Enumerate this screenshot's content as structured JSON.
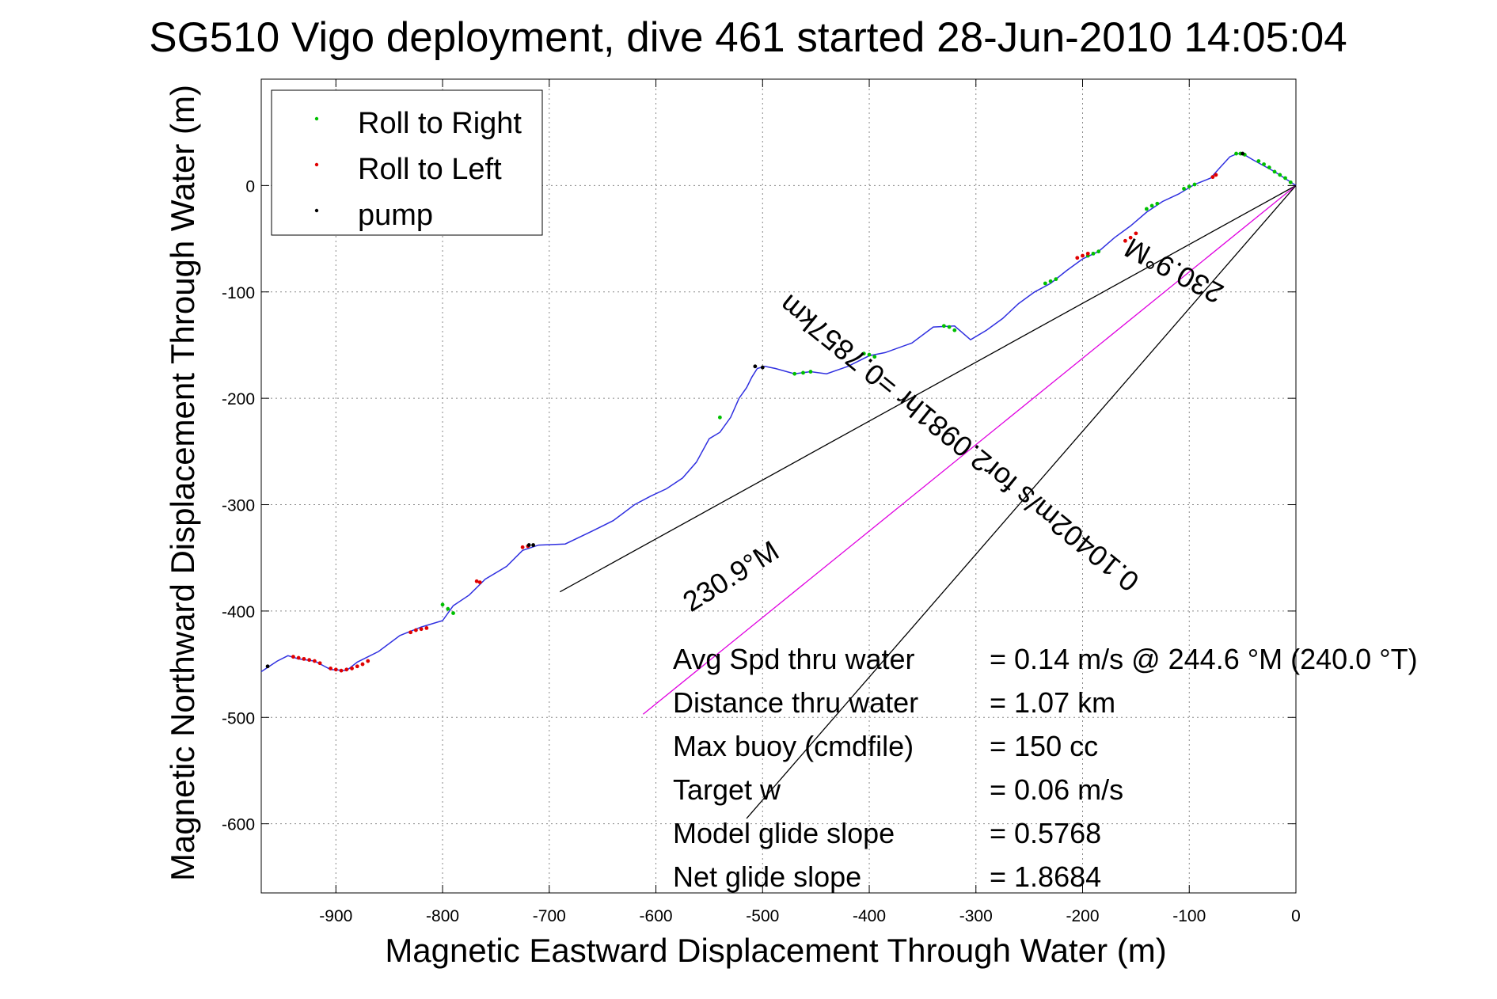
{
  "chart_data": {
    "type": "line",
    "title": "SG510 Vigo deployment, dive 461 started 28-Jun-2010 14:05:04",
    "xlabel": "Magnetic Eastward Displacement Through Water (m)",
    "ylabel": "Magnetic Northward Displacement Through Water (m)",
    "xlim": [
      -970,
      0
    ],
    "ylim": [
      -665,
      100
    ],
    "xticks": [
      -900,
      -800,
      -700,
      -600,
      -500,
      -400,
      -300,
      -200,
      -100,
      0
    ],
    "yticks": [
      0,
      -100,
      -200,
      -300,
      -400,
      -500,
      -600
    ],
    "grid": true,
    "legend_position": "top-left",
    "legend": [
      {
        "label": "Roll to Right",
        "color": "#00c000"
      },
      {
        "label": "Roll to Left",
        "color": "#e00000"
      },
      {
        "label": "pump",
        "color": "#000000"
      }
    ],
    "track": {
      "name": "track",
      "color": "#3030e0",
      "x": [
        0,
        -20,
        -40,
        -50,
        -55,
        -62,
        -72,
        -80,
        -95,
        -110,
        -125,
        -140,
        -155,
        -170,
        -185,
        -200,
        -215,
        -230,
        -245,
        -260,
        -275,
        -290,
        -305,
        -320,
        -340,
        -360,
        -385,
        -400,
        -420,
        -440,
        -455,
        -470,
        -488,
        -498,
        -505,
        -510,
        -515,
        -522,
        -530,
        -540,
        -550,
        -562,
        -575,
        -590,
        -605,
        -620,
        -640,
        -660,
        -685,
        -710,
        -725,
        -740,
        -760,
        -775,
        -790,
        -800,
        -820,
        -840,
        -860,
        -880,
        -890,
        -905,
        -920,
        -935,
        -945,
        -955,
        -970
      ],
      "y": [
        0,
        13,
        24,
        30,
        30,
        27,
        16,
        7,
        1,
        -8,
        -15,
        -25,
        -38,
        -49,
        -62,
        -69,
        -80,
        -92,
        -100,
        -111,
        -125,
        -136,
        -145,
        -132,
        -133,
        -148,
        -157,
        -160,
        -170,
        -177,
        -175,
        -177,
        -172,
        -170,
        -172,
        -180,
        -190,
        -200,
        -218,
        -232,
        -238,
        -260,
        -275,
        -285,
        -292,
        -300,
        -315,
        -325,
        -337,
        -338,
        -343,
        -358,
        -370,
        -385,
        -395,
        -409,
        -415,
        -423,
        -438,
        -448,
        -456,
        -455,
        -447,
        -445,
        -442,
        -447,
        -457
      ]
    },
    "roll_right_points": {
      "x": [
        -5,
        -10,
        -15,
        -20,
        -25,
        -30,
        -35,
        -48,
        -52,
        -56,
        -95,
        -100,
        -105,
        -130,
        -135,
        -140,
        -185,
        -190,
        -195,
        -225,
        -230,
        -235,
        -320,
        -325,
        -330,
        -395,
        -400,
        -405,
        -455,
        -462,
        -470,
        -540,
        -790,
        -795,
        -800
      ],
      "y": [
        3,
        7,
        10,
        13,
        17,
        20,
        23,
        29,
        30,
        30,
        1,
        -1,
        -3,
        -17,
        -19,
        -22,
        -62,
        -64,
        -66,
        -88,
        -90,
        -92,
        -136,
        -133,
        -132,
        -161,
        -159,
        -158,
        -175,
        -176,
        -177,
        -218,
        -402,
        -398,
        -394
      ]
    },
    "roll_left_points": {
      "x": [
        -75,
        -78,
        -150,
        -155,
        -160,
        -195,
        -200,
        -205,
        -720,
        -725,
        -765,
        -768,
        -815,
        -820,
        -825,
        -830,
        -870,
        -875,
        -880,
        -885,
        -890,
        -895,
        -900,
        -905,
        -915,
        -920,
        -925,
        -930,
        -935,
        -940
      ],
      "y": [
        10,
        8,
        -45,
        -49,
        -52,
        -64,
        -66,
        -68,
        -339,
        -340,
        -373,
        -372,
        -416,
        -417,
        -418,
        -420,
        -447,
        -450,
        -452,
        -454,
        -455,
        -456,
        -455,
        -454,
        -449,
        -447,
        -446,
        -445,
        -444,
        -443
      ]
    },
    "pump_points": {
      "x": [
        -50,
        -507,
        -500,
        -719,
        -715,
        -964
      ],
      "y": [
        30,
        -170,
        -171,
        -338,
        -338,
        -452
      ]
    },
    "reference_lines": [
      {
        "x": [
          0,
          -690
        ],
        "y": [
          0,
          -382
        ],
        "color": "#000000"
      },
      {
        "x": [
          0,
          -612
        ],
        "y": [
          0,
          -497
        ],
        "color": "#e000e0"
      },
      {
        "x": [
          0,
          -515
        ],
        "y": [
          0,
          -595
        ],
        "color": "#000000"
      }
    ],
    "annotations": [
      {
        "text": "230.9°M",
        "x": -110,
        "y": -72,
        "rotation": 208
      },
      {
        "text": "0.10402m/s for2.0981hr =0.7857km",
        "x": -310,
        "y": -235,
        "rotation": 219
      },
      {
        "text": "230.9°M",
        "x": -525,
        "y": -375,
        "rotation": -32
      }
    ],
    "stats": [
      {
        "label": "Avg Spd thru water",
        "value": "=  0.14 m/s @ 244.6 °M (240.0 °T)"
      },
      {
        "label": "Distance thru water",
        "value": "=  1.07 km"
      },
      {
        "label": "Max buoy (cmdfile)",
        "value": "= 150 cc"
      },
      {
        "label": "Target w",
        "value": "= 0.06 m/s"
      },
      {
        "label": "Model glide slope",
        "value": "= 0.5768"
      },
      {
        "label": "Net glide slope",
        "value": "= 1.8684"
      }
    ]
  }
}
